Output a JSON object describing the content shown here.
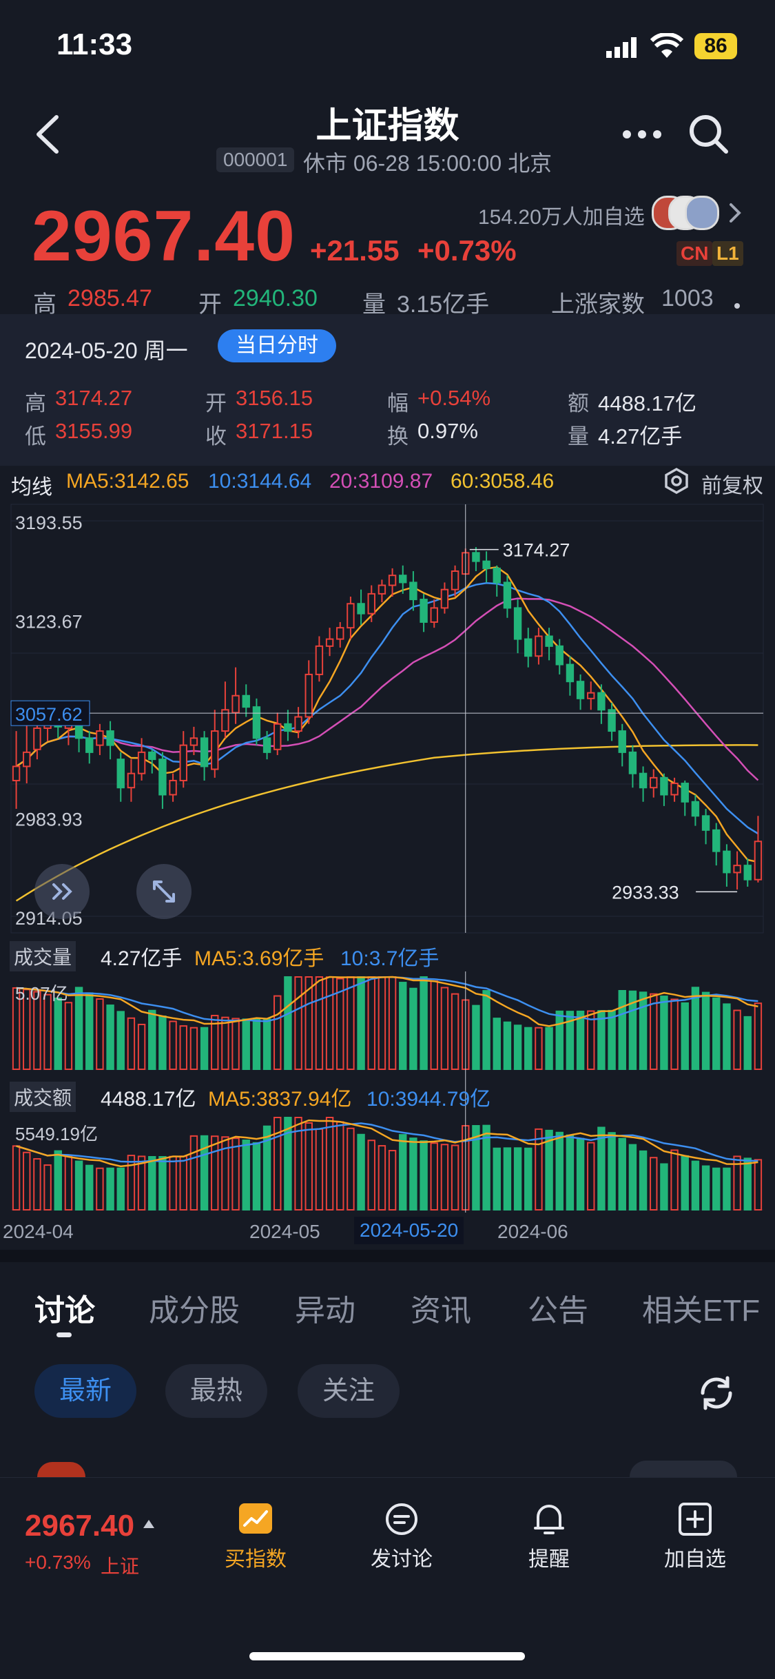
{
  "status_bar": {
    "time": "11:33",
    "battery": "86"
  },
  "header": {
    "title": "上证指数",
    "code": "000001",
    "market_status": "休市 06-28 15:00:00 北京"
  },
  "quote": {
    "price": "2967.40",
    "change_abs": "+21.55",
    "change_pct": "+0.73%",
    "watchers": "154.20万人加自选",
    "tags": [
      "CN",
      "L1"
    ],
    "stats": {
      "high_label": "高",
      "high": "2985.47",
      "open_label": "开",
      "open": "2940.30",
      "volume_label": "量",
      "volume": "3.15亿手",
      "advancers_label": "上涨家数",
      "advancers": "1003"
    }
  },
  "detail": {
    "date": "2024-05-20 周一",
    "intraday_button": "当日分时",
    "cells": [
      {
        "label": "高",
        "value": "3174.27",
        "color": "#e8413a"
      },
      {
        "label": "开",
        "value": "3156.15",
        "color": "#e8413a"
      },
      {
        "label": "幅",
        "value": "+0.54%",
        "color": "#e8413a"
      },
      {
        "label": "额",
        "value": "4488.17亿",
        "color": "#e6e8ee"
      },
      {
        "label": "低",
        "value": "3155.99",
        "color": "#e8413a"
      },
      {
        "label": "收",
        "value": "3171.15",
        "color": "#e8413a"
      },
      {
        "label": "换",
        "value": "0.97%",
        "color": "#e6e8ee"
      },
      {
        "label": "量",
        "value": "4.27亿手",
        "color": "#e6e8ee"
      }
    ]
  },
  "ma_row": {
    "label": "均线",
    "ma5": "MA5:3142.65",
    "ma10": "10:3144.64",
    "ma20": "20:3109.87",
    "ma60": "60:3058.46",
    "fuquan": "前复权"
  },
  "chart_data": {
    "type": "candlestick",
    "price_axis_labels": [
      "3193.55",
      "3123.67",
      "2983.93",
      "2914.05"
    ],
    "price_range": [
      2914.05,
      3193.55
    ],
    "crosshair_price": "3057.62",
    "max_marker": "3174.27",
    "min_marker": "2933.33",
    "x_axis_labels": [
      "2024-04",
      "2024-05",
      "2024-05-20",
      "2024-06"
    ],
    "selected_date": "2024-05-20",
    "colors": {
      "up": "#e8413a",
      "down": "#22b57a",
      "ma5": "#f5a623",
      "ma10": "#3d8ff0",
      "ma20": "#d44fb6",
      "ma60": "#f2c230"
    },
    "candles": [
      [
        3010,
        3020,
        2990,
        3045
      ],
      [
        3020,
        3030,
        3008,
        3052
      ],
      [
        3032,
        3047,
        3025,
        3062
      ],
      [
        3047,
        3052,
        3038,
        3060
      ],
      [
        3052,
        3048,
        3040,
        3058
      ],
      [
        3047,
        3050,
        3035,
        3056
      ],
      [
        3052,
        3040,
        3030,
        3060
      ],
      [
        3040,
        3030,
        3022,
        3045
      ],
      [
        3035,
        3045,
        3028,
        3050
      ],
      [
        3045,
        3035,
        3025,
        3052
      ],
      [
        3025,
        3005,
        2995,
        3030
      ],
      [
        3005,
        3015,
        2995,
        3025
      ],
      [
        3015,
        3030,
        3010,
        3040
      ],
      [
        3030,
        3025,
        3015,
        3032
      ],
      [
        3025,
        3000,
        2990,
        3030
      ],
      [
        3000,
        3010,
        2995,
        3015
      ],
      [
        3010,
        3035,
        3005,
        3045
      ],
      [
        3035,
        3040,
        3028,
        3048
      ],
      [
        3040,
        3020,
        3010,
        3045
      ],
      [
        3018,
        3045,
        3012,
        3060
      ],
      [
        3045,
        3060,
        3040,
        3080
      ],
      [
        3058,
        3070,
        3050,
        3090
      ],
      [
        3070,
        3062,
        3055,
        3078
      ],
      [
        3062,
        3040,
        3035,
        3068
      ],
      [
        3040,
        3030,
        3025,
        3045
      ],
      [
        3032,
        3050,
        3028,
        3058
      ],
      [
        3050,
        3045,
        3038,
        3060
      ],
      [
        3045,
        3055,
        3040,
        3062
      ],
      [
        3055,
        3085,
        3050,
        3095
      ],
      [
        3085,
        3105,
        3080,
        3112
      ],
      [
        3105,
        3110,
        3098,
        3118
      ],
      [
        3110,
        3118,
        3104,
        3122
      ],
      [
        3118,
        3135,
        3110,
        3140
      ],
      [
        3135,
        3128,
        3120,
        3145
      ],
      [
        3128,
        3142,
        3122,
        3148
      ],
      [
        3142,
        3148,
        3136,
        3152
      ],
      [
        3148,
        3155,
        3140,
        3160
      ],
      [
        3155,
        3150,
        3142,
        3162
      ],
      [
        3150,
        3138,
        3130,
        3158
      ],
      [
        3138,
        3122,
        3115,
        3142
      ],
      [
        3122,
        3132,
        3118,
        3138
      ],
      [
        3132,
        3145,
        3128,
        3150
      ],
      [
        3145,
        3158,
        3140,
        3162
      ],
      [
        3156,
        3171,
        3156,
        3174
      ],
      [
        3171,
        3165,
        3158,
        3175
      ],
      [
        3165,
        3160,
        3150,
        3172
      ],
      [
        3160,
        3150,
        3140,
        3162
      ],
      [
        3150,
        3132,
        3125,
        3155
      ],
      [
        3132,
        3110,
        3100,
        3138
      ],
      [
        3110,
        3098,
        3090,
        3118
      ],
      [
        3098,
        3112,
        3092,
        3118
      ],
      [
        3112,
        3105,
        3095,
        3118
      ],
      [
        3105,
        3092,
        3085,
        3110
      ],
      [
        3092,
        3080,
        3070,
        3098
      ],
      [
        3080,
        3068,
        3060,
        3085
      ],
      [
        3068,
        3072,
        3060,
        3080
      ],
      [
        3072,
        3060,
        3050,
        3078
      ],
      [
        3060,
        3045,
        3038,
        3065
      ],
      [
        3045,
        3030,
        3020,
        3050
      ],
      [
        3030,
        3015,
        3005,
        3035
      ],
      [
        3015,
        3005,
        2995,
        3020
      ],
      [
        3005,
        3012,
        2998,
        3018
      ],
      [
        3012,
        3000,
        2992,
        3015
      ],
      [
        3000,
        3008,
        2995,
        3012
      ],
      [
        3008,
        2995,
        2985,
        3010
      ],
      [
        2995,
        2985,
        2978,
        3000
      ],
      [
        2985,
        2975,
        2965,
        2990
      ],
      [
        2975,
        2960,
        2950,
        2980
      ],
      [
        2960,
        2945,
        2935,
        2965
      ],
      [
        2945,
        2950,
        2933,
        2960
      ],
      [
        2950,
        2940,
        2935,
        2955
      ],
      [
        2940,
        2967,
        2938,
        2985
      ]
    ],
    "volume": {
      "label": "成交量",
      "current": "4.27亿手",
      "ma5": "MA5:3.69亿手",
      "ma10": "10:3.7亿手",
      "axis_max": "5.07亿"
    },
    "amount": {
      "label": "成交额",
      "current": "4488.17亿",
      "ma5": "MA5:3837.94亿",
      "ma10": "10:3944.79亿",
      "axis_max": "5549.19亿"
    }
  },
  "tabs": [
    "讨论",
    "成分股",
    "异动",
    "资讯",
    "公告",
    "相关ETF"
  ],
  "filters": [
    "最新",
    "最热",
    "关注"
  ],
  "bottom_bar": {
    "price": "2967.40",
    "pct": "+0.73%",
    "name": "上证",
    "buttons": [
      {
        "label": "买指数",
        "icon": "chart-icon"
      },
      {
        "label": "发讨论",
        "icon": "comment-icon"
      },
      {
        "label": "提醒",
        "icon": "bell-icon"
      },
      {
        "label": "加自选",
        "icon": "add-square-icon"
      }
    ]
  }
}
